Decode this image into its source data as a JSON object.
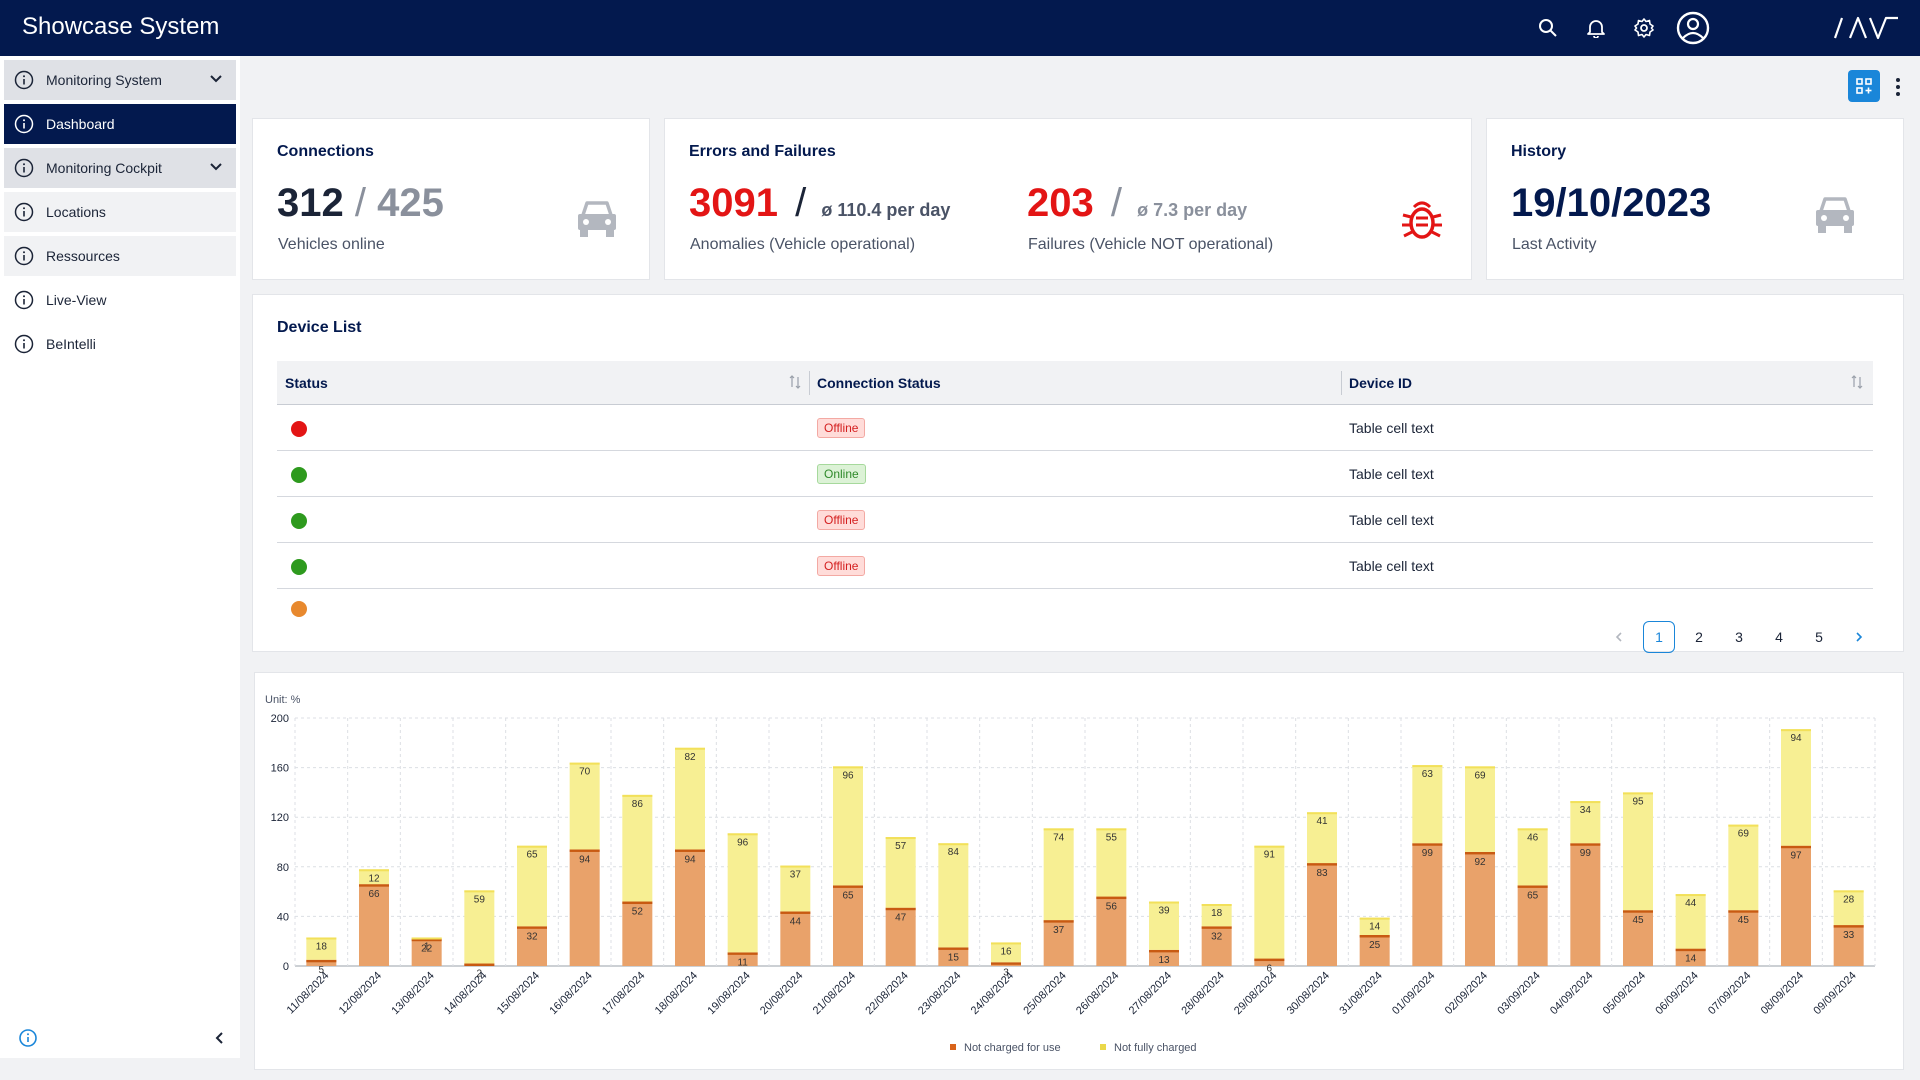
{
  "app": {
    "title": "Showcase System"
  },
  "topbar": {
    "icons": [
      "search-icon",
      "bell-icon",
      "gear-icon",
      "user-circle-icon"
    ],
    "logo": "IAV"
  },
  "sidebar": {
    "items": [
      {
        "label": "Monitoring System",
        "expandable": true
      },
      {
        "label": "Dashboard",
        "active": true
      },
      {
        "label": "Monitoring Cockpit",
        "expandable": true
      },
      {
        "label": "Locations"
      },
      {
        "label": "Ressources"
      },
      {
        "label": "Live-View"
      },
      {
        "label": "BeIntelli"
      }
    ]
  },
  "cards": {
    "connections": {
      "title": "Connections",
      "online": "312",
      "separator": "/",
      "total": "425",
      "label": "Vehicles online"
    },
    "errors": {
      "title": "Errors and Failures",
      "anomalies": {
        "value": "3091",
        "separator": "/",
        "avg": "ø 110.4 per day",
        "label": "Anomalies (Vehicle operational)"
      },
      "failures": {
        "value": "203",
        "separator": "/",
        "avg": "ø 7.3 per day",
        "label": "Failures (Vehicle NOT operational)"
      }
    },
    "history": {
      "title": "History",
      "date": "19/10/2023",
      "label": "Last Activity"
    }
  },
  "device_list": {
    "title": "Device List",
    "columns": [
      "Status",
      "Connection Status",
      "Device ID"
    ],
    "rows": [
      {
        "status": "red",
        "connection": "Offline",
        "device_id": "Table cell text"
      },
      {
        "status": "green",
        "connection": "Online",
        "device_id": "Table cell text"
      },
      {
        "status": "green",
        "connection": "Offline",
        "device_id": "Table cell text"
      },
      {
        "status": "green",
        "connection": "Offline",
        "device_id": "Table cell text"
      },
      {
        "status": "orange",
        "connection": "",
        "device_id": ""
      }
    ],
    "pagination": {
      "pages": [
        "1",
        "2",
        "3",
        "4",
        "5"
      ],
      "current": "1"
    }
  },
  "colors": {
    "navy": "#03194e",
    "red": "#e31515",
    "green": "#2e9a1e",
    "orange": "#e8892e",
    "blue": "#1a86d9",
    "bar_orange": "#e9a26a",
    "bar_yellow": "#f7ef93"
  },
  "chart_data": {
    "type": "bar",
    "stacked": true,
    "unit_label": "Unit: %",
    "ylim": [
      0,
      200
    ],
    "yticks": [
      0,
      40,
      80,
      120,
      160,
      200
    ],
    "categories": [
      "11/08/2024",
      "12/08/2024",
      "13/08/2024",
      "14/08/2024",
      "15/08/2024",
      "16/08/2024",
      "17/08/2024",
      "18/08/2024",
      "19/08/2024",
      "20/08/2024",
      "21/08/2024",
      "22/08/2024",
      "23/08/2024",
      "24/08/2024",
      "25/08/2024",
      "26/08/2024",
      "27/08/2024",
      "28/08/2024",
      "29/08/2024",
      "30/08/2024",
      "31/08/2024",
      "01/09/2024",
      "02/09/2024",
      "03/09/2024",
      "04/09/2024",
      "05/09/2024",
      "06/09/2024",
      "07/09/2024",
      "08/09/2024",
      "09/09/2024"
    ],
    "series": [
      {
        "name": "Not charged for use",
        "color": "#e9a26a",
        "values": [
          5,
          66,
          22,
          2,
          32,
          94,
          52,
          94,
          11,
          44,
          65,
          47,
          15,
          3,
          37,
          56,
          13,
          32,
          6,
          83,
          25,
          99,
          92,
          65,
          99,
          45,
          14,
          45,
          97,
          33
        ]
      },
      {
        "name": "Not fully charged",
        "color": "#f7ef93",
        "values": [
          18,
          12,
          1,
          59,
          65,
          70,
          86,
          82,
          96,
          37,
          96,
          57,
          84,
          16,
          74,
          55,
          39,
          18,
          91,
          41,
          14,
          63,
          69,
          46,
          34,
          95,
          44,
          69,
          94,
          28
        ]
      }
    ],
    "legend_position": "bottom-center",
    "grid": true
  }
}
